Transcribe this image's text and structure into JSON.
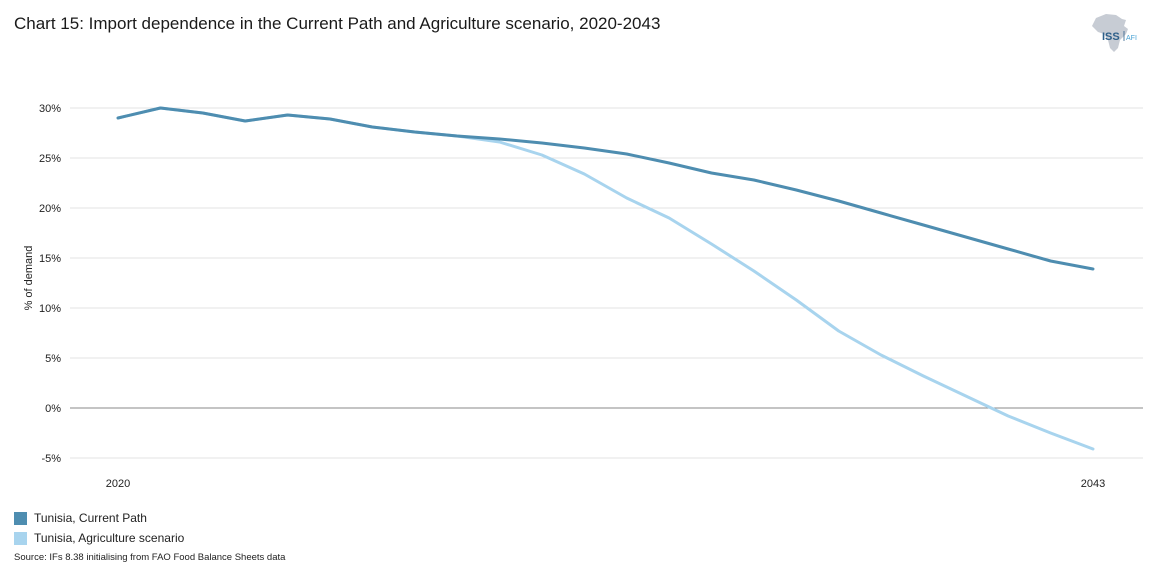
{
  "title": "Chart 15: Import dependence in the Current Path and Agriculture scenario, 2020-2043",
  "logo": {
    "text": "ISS",
    "subtext": "AFI"
  },
  "source": "Source: IFs 8.38 initialising from FAO Food Balance Sheets data",
  "colors": {
    "current_path": "#4e8db0",
    "agriculture": "#a8d4ee",
    "grid": "#e3e3e3",
    "zero_line": "#8a8a8a"
  },
  "chart_data": {
    "type": "line",
    "title": "Chart 15: Import dependence in the Current Path and Agriculture scenario, 2020-2043",
    "xlabel": "",
    "ylabel": "% of demand",
    "ylim": [
      -5,
      30
    ],
    "yticks": [
      "-5%",
      "0%",
      "5%",
      "10%",
      "15%",
      "20%",
      "25%",
      "30%"
    ],
    "ytick_values": [
      -5,
      0,
      5,
      10,
      15,
      20,
      25,
      30
    ],
    "xtick_labels": [
      "2020",
      "2043"
    ],
    "x": [
      2020,
      2021,
      2022,
      2023,
      2024,
      2025,
      2026,
      2027,
      2028,
      2029,
      2030,
      2031,
      2032,
      2033,
      2034,
      2035,
      2036,
      2037,
      2038,
      2039,
      2040,
      2041,
      2042,
      2043
    ],
    "grid": true,
    "legend_position": "bottom-left",
    "series": [
      {
        "name": "Tunisia, Current Path",
        "values": [
          29.0,
          30.0,
          29.5,
          28.7,
          29.3,
          28.9,
          28.1,
          27.6,
          27.2,
          26.9,
          26.5,
          26.0,
          25.4,
          24.5,
          23.5,
          22.8,
          21.8,
          20.7,
          19.5,
          18.3,
          17.1,
          15.9,
          14.7,
          13.9
        ]
      },
      {
        "name": "Tunisia, Agriculture scenario",
        "values": [
          29.0,
          30.0,
          29.5,
          28.7,
          29.3,
          28.9,
          28.1,
          27.6,
          27.2,
          26.6,
          25.3,
          23.4,
          21.0,
          19.0,
          16.4,
          13.7,
          10.8,
          7.7,
          5.3,
          3.2,
          1.2,
          -0.8,
          -2.5,
          -4.1
        ]
      }
    ]
  }
}
